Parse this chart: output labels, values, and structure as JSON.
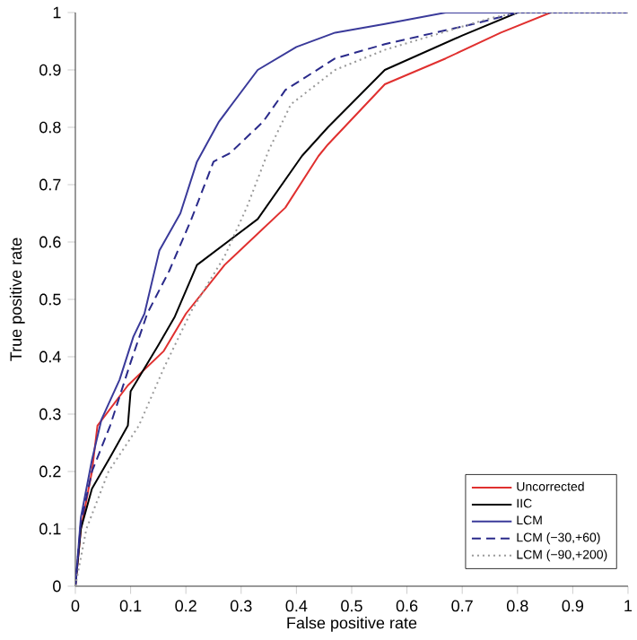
{
  "chart_data": {
    "type": "line",
    "xlabel": "False positive rate",
    "ylabel": "True positive rate",
    "xlim": [
      0,
      1
    ],
    "ylim": [
      0,
      1
    ],
    "xticks": [
      0,
      0.1,
      0.2,
      0.3,
      0.4,
      0.5,
      0.6,
      0.7,
      0.8,
      0.9,
      1
    ],
    "yticks": [
      0,
      0.1,
      0.2,
      0.3,
      0.4,
      0.5,
      0.6,
      0.7,
      0.8,
      0.9,
      1
    ],
    "legend": "bottom right",
    "grid": false,
    "series": [
      {
        "name": "Uncorrected",
        "color": "#e0302f",
        "line_style": "solid",
        "x": [
          0,
          0.01,
          0.03,
          0.04,
          0.095,
          0.16,
          0.2,
          0.27,
          0.38,
          0.44,
          0.457,
          0.56,
          0.67,
          0.77,
          0.86,
          1
        ],
        "values": [
          0,
          0.1,
          0.2,
          0.28,
          0.35,
          0.41,
          0.475,
          0.56,
          0.66,
          0.75,
          0.77,
          0.875,
          0.92,
          0.965,
          1,
          1
        ]
      },
      {
        "name": "IIC",
        "color": "#000000",
        "line_style": "solid",
        "x": [
          0,
          0.01,
          0.03,
          0.063,
          0.095,
          0.1,
          0.15,
          0.18,
          0.22,
          0.33,
          0.41,
          0.457,
          0.56,
          0.7,
          0.8,
          1
        ],
        "values": [
          0,
          0.1,
          0.17,
          0.225,
          0.28,
          0.34,
          0.42,
          0.47,
          0.56,
          0.64,
          0.75,
          0.8,
          0.9,
          0.96,
          1,
          1
        ]
      },
      {
        "name": "LCM",
        "color": "#3a3a9a",
        "line_style": "solid",
        "x": [
          0,
          0.01,
          0.03,
          0.047,
          0.08,
          0.105,
          0.125,
          0.152,
          0.19,
          0.22,
          0.26,
          0.33,
          0.4,
          0.47,
          0.56,
          0.67,
          1
        ],
        "values": [
          0,
          0.12,
          0.22,
          0.29,
          0.36,
          0.435,
          0.475,
          0.585,
          0.65,
          0.74,
          0.81,
          0.9,
          0.94,
          0.965,
          0.98,
          1,
          1
        ]
      },
      {
        "name": "LCM (−30,+60)",
        "color": "#2a2a8a",
        "line_style": "dashed",
        "x": [
          0,
          0.01,
          0.03,
          0.063,
          0.1,
          0.13,
          0.17,
          0.21,
          0.25,
          0.28,
          0.34,
          0.38,
          0.47,
          0.56,
          0.72,
          0.8,
          1
        ],
        "values": [
          0,
          0.11,
          0.2,
          0.28,
          0.39,
          0.475,
          0.55,
          0.64,
          0.74,
          0.755,
          0.81,
          0.865,
          0.92,
          0.945,
          0.98,
          1,
          1
        ]
      },
      {
        "name": "LCM (−90,+200)",
        "color": "#999999",
        "line_style": "dotted",
        "x": [
          0,
          0.02,
          0.06,
          0.115,
          0.16,
          0.21,
          0.27,
          0.31,
          0.35,
          0.39,
          0.47,
          0.56,
          0.75,
          0.8,
          1
        ],
        "values": [
          0,
          0.1,
          0.2,
          0.28,
          0.38,
          0.48,
          0.575,
          0.66,
          0.76,
          0.84,
          0.9,
          0.935,
          0.99,
          1,
          1
        ]
      }
    ]
  }
}
